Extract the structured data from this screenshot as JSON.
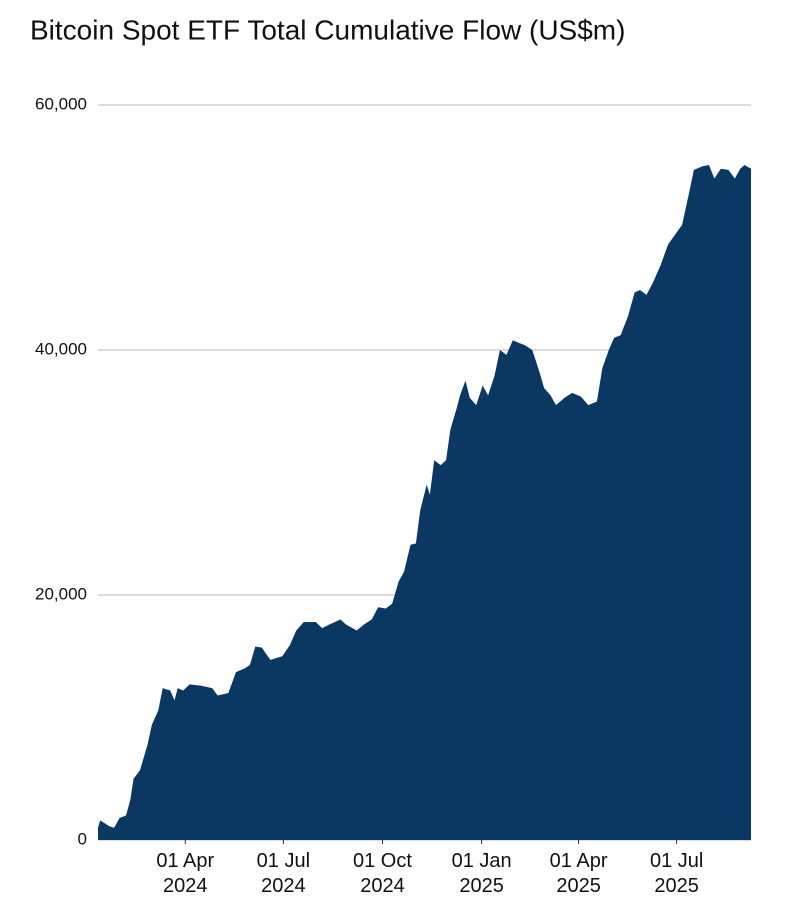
{
  "chart_data": {
    "type": "area",
    "title": "Bitcoin Spot ETF Total Cumulative Flow (US$m)",
    "color": "#0b3763",
    "grid": true,
    "x": [
      "2024-01-11",
      "2024-01-13",
      "2024-01-22",
      "2024-01-26",
      "2024-01-31",
      "2024-02-06",
      "2024-02-10",
      "2024-02-13",
      "2024-02-19",
      "2024-02-26",
      "2024-03-01",
      "2024-03-07",
      "2024-03-11",
      "2024-03-18",
      "2024-03-22",
      "2024-03-25",
      "2024-03-30",
      "2024-04-05",
      "2024-04-15",
      "2024-04-26",
      "2024-05-01",
      "2024-05-11",
      "2024-05-18",
      "2024-05-26",
      "2024-05-31",
      "2024-06-05",
      "2024-06-11",
      "2024-06-19",
      "2024-06-30",
      "2024-07-07",
      "2024-07-13",
      "2024-07-20",
      "2024-07-31",
      "2024-08-06",
      "2024-08-13",
      "2024-08-23",
      "2024-08-28",
      "2024-09-07",
      "2024-09-14",
      "2024-09-21",
      "2024-09-27",
      "2024-10-04",
      "2024-10-10",
      "2024-10-16",
      "2024-10-21",
      "2024-10-27",
      "2024-11-01",
      "2024-11-05",
      "2024-11-11",
      "2024-11-14",
      "2024-11-18",
      "2024-11-24",
      "2024-11-29",
      "2024-12-03",
      "2024-12-09",
      "2024-12-12",
      "2024-12-17",
      "2024-12-21",
      "2024-12-27",
      "2025-01-02",
      "2025-01-07",
      "2025-01-13",
      "2025-01-18",
      "2025-01-24",
      "2025-01-30",
      "2025-02-04",
      "2025-02-10",
      "2025-02-17",
      "2025-02-23",
      "2025-02-28",
      "2025-03-06",
      "2025-03-11",
      "2025-03-19",
      "2025-03-26",
      "2025-04-03",
      "2025-04-10",
      "2025-04-18",
      "2025-04-23",
      "2025-04-29",
      "2025-05-04",
      "2025-05-10",
      "2025-05-17",
      "2025-05-23",
      "2025-05-28",
      "2025-06-03",
      "2025-06-09",
      "2025-06-16",
      "2025-06-23",
      "2025-07-01",
      "2025-07-06",
      "2025-07-12",
      "2025-07-17",
      "2025-07-25",
      "2025-07-31",
      "2025-08-05",
      "2025-08-11",
      "2025-08-18",
      "2025-08-24",
      "2025-08-29",
      "2025-09-02",
      "2025-09-08"
    ],
    "values": [
      1000,
      1600,
      1100,
      1000,
      1800,
      2000,
      3300,
      5000,
      5700,
      7800,
      9400,
      10600,
      12400,
      12200,
      11400,
      12400,
      12200,
      12700,
      12600,
      12400,
      11800,
      12000,
      13700,
      14000,
      14300,
      15800,
      15700,
      14700,
      15000,
      15900,
      17100,
      17800,
      17800,
      17300,
      17600,
      18000,
      17600,
      17100,
      17600,
      18000,
      19000,
      18900,
      19300,
      21100,
      21900,
      24100,
      24200,
      26900,
      29000,
      28200,
      31000,
      30600,
      31000,
      33500,
      35300,
      36300,
      37500,
      36100,
      35500,
      37100,
      36300,
      37900,
      40000,
      39600,
      40800,
      40600,
      40400,
      40000,
      38400,
      36900,
      36300,
      35500,
      36100,
      36500,
      36200,
      35500,
      35800,
      38500,
      40000,
      41000,
      41200,
      42800,
      44700,
      44900,
      44500,
      45500,
      46900,
      48600,
      49600,
      50200,
      52600,
      54700,
      55000,
      55100,
      54000,
      54800,
      54700,
      54000,
      54800,
      55100,
      54800
    ],
    "xlim": [
      "2024-01-11",
      "2025-09-08"
    ],
    "xticks": [
      {
        "value": "2024-04-01",
        "label": "01 Apr 2024"
      },
      {
        "value": "2024-07-01",
        "label": "01 Jul 2024"
      },
      {
        "value": "2024-10-01",
        "label": "01 Oct 2024"
      },
      {
        "value": "2025-01-01",
        "label": "01 Jan 2025"
      },
      {
        "value": "2025-04-01",
        "label": "01 Apr 2025"
      },
      {
        "value": "2025-07-01",
        "label": "01 Jul 2025"
      }
    ],
    "ylim": [
      0,
      60000
    ],
    "yticks": [
      0,
      {
        "value": 20000,
        "label": "20,000"
      },
      {
        "value": 40000,
        "label": "40,000"
      },
      {
        "value": 60000,
        "label": "60,000"
      }
    ]
  }
}
